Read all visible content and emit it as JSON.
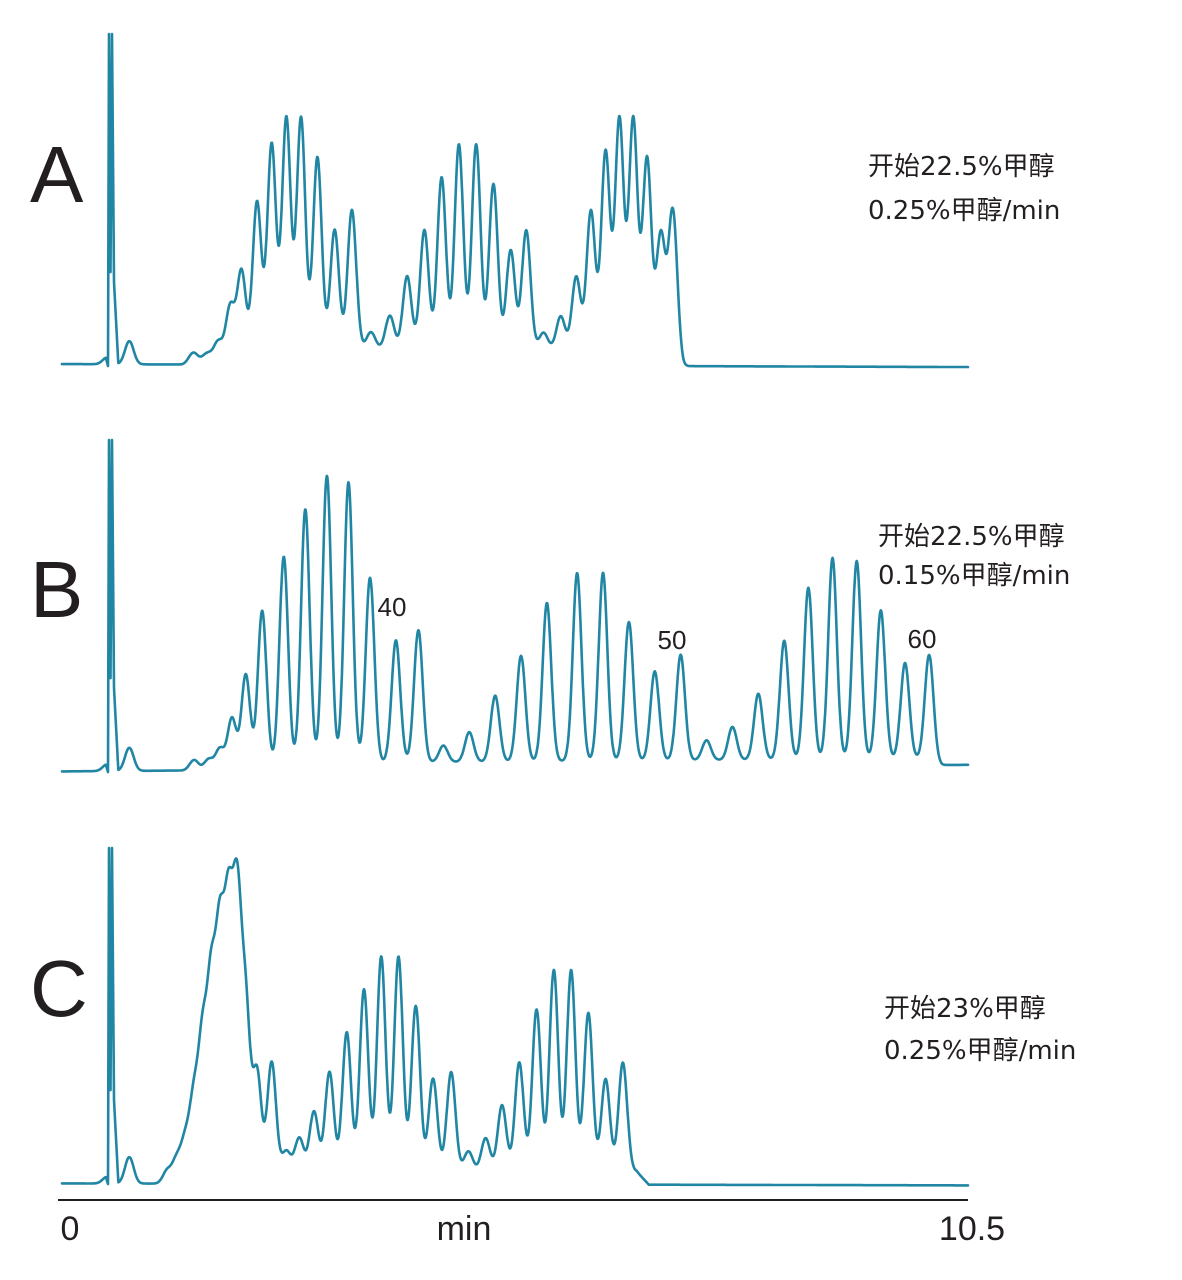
{
  "chart_data": {
    "type": "line",
    "line_color": "#2186a3",
    "text_color": "#231f20",
    "x_axis": {
      "label": "min",
      "range": [
        0,
        10.5
      ],
      "tick_labels": [
        "0",
        "10.5"
      ]
    },
    "panels": [
      {
        "letter": "A",
        "conditions": [
          "开始22.5%甲醇",
          "0.25%甲醇/min"
        ],
        "peak_labels": [],
        "baseline_start": 0.024,
        "baseline_end": 0.015,
        "plateau": {
          "start": 1.4,
          "end": 7.2,
          "level": 0.05
        },
        "void_peak_time": 0.58,
        "peaks": [
          {
            "t": 0.52,
            "h": 0.02
          },
          {
            "t": 0.78,
            "h": 0.07
          },
          {
            "t": 1.52,
            "h": 0.03
          },
          {
            "t": 1.68,
            "h": 0.02
          },
          {
            "t": 1.81,
            "h": 0.05
          },
          {
            "t": 1.95,
            "h": 0.15
          },
          {
            "t": 2.08,
            "h": 0.25
          },
          {
            "t": 2.26,
            "h": 0.45
          },
          {
            "t": 2.43,
            "h": 0.62
          },
          {
            "t": 2.6,
            "h": 0.7
          },
          {
            "t": 2.77,
            "h": 0.7
          },
          {
            "t": 2.96,
            "h": 0.58
          },
          {
            "t": 3.16,
            "h": 0.36
          },
          {
            "t": 3.36,
            "h": 0.42
          },
          {
            "t": 3.58,
            "h": 0.05
          },
          {
            "t": 3.8,
            "h": 0.1
          },
          {
            "t": 4.0,
            "h": 0.22
          },
          {
            "t": 4.2,
            "h": 0.36
          },
          {
            "t": 4.4,
            "h": 0.52
          },
          {
            "t": 4.6,
            "h": 0.62
          },
          {
            "t": 4.8,
            "h": 0.62
          },
          {
            "t": 5.0,
            "h": 0.5
          },
          {
            "t": 5.2,
            "h": 0.3
          },
          {
            "t": 5.38,
            "h": 0.36
          },
          {
            "t": 5.58,
            "h": 0.05
          },
          {
            "t": 5.78,
            "h": 0.1
          },
          {
            "t": 5.96,
            "h": 0.22
          },
          {
            "t": 6.13,
            "h": 0.42
          },
          {
            "t": 6.3,
            "h": 0.6
          },
          {
            "t": 6.46,
            "h": 0.7
          },
          {
            "t": 6.62,
            "h": 0.7
          },
          {
            "t": 6.78,
            "h": 0.58
          },
          {
            "t": 6.94,
            "h": 0.35
          },
          {
            "t": 7.08,
            "h": 0.43
          }
        ]
      },
      {
        "letter": "B",
        "conditions": [
          "开始22.5%甲醇",
          "0.15%甲醇/min"
        ],
        "peak_labels": [
          {
            "text": "40",
            "t": 3.82
          },
          {
            "text": "50",
            "t": 7.05
          },
          {
            "text": "60",
            "t": 10.0
          }
        ],
        "baseline_start": 0.02,
        "baseline_end": 0.04,
        "plateau": {
          "start": 1.4,
          "end": 10.2,
          "level": 0.02
        },
        "void_peak_time": 0.58,
        "peaks": [
          {
            "t": 0.52,
            "h": 0.02
          },
          {
            "t": 0.78,
            "h": 0.07
          },
          {
            "t": 1.53,
            "h": 0.03
          },
          {
            "t": 1.7,
            "h": 0.03
          },
          {
            "t": 1.83,
            "h": 0.06
          },
          {
            "t": 1.97,
            "h": 0.15
          },
          {
            "t": 2.13,
            "h": 0.28
          },
          {
            "t": 2.32,
            "h": 0.47
          },
          {
            "t": 2.57,
            "h": 0.63
          },
          {
            "t": 2.82,
            "h": 0.77
          },
          {
            "t": 3.07,
            "h": 0.87
          },
          {
            "t": 3.32,
            "h": 0.85
          },
          {
            "t": 3.57,
            "h": 0.56
          },
          {
            "t": 3.87,
            "h": 0.37
          },
          {
            "t": 4.13,
            "h": 0.4
          },
          {
            "t": 4.42,
            "h": 0.05
          },
          {
            "t": 4.72,
            "h": 0.09
          },
          {
            "t": 5.02,
            "h": 0.2
          },
          {
            "t": 5.32,
            "h": 0.32
          },
          {
            "t": 5.62,
            "h": 0.48
          },
          {
            "t": 5.97,
            "h": 0.57
          },
          {
            "t": 6.27,
            "h": 0.57
          },
          {
            "t": 6.57,
            "h": 0.42
          },
          {
            "t": 6.87,
            "h": 0.27
          },
          {
            "t": 7.17,
            "h": 0.32
          },
          {
            "t": 7.47,
            "h": 0.06
          },
          {
            "t": 7.77,
            "h": 0.1
          },
          {
            "t": 8.07,
            "h": 0.2
          },
          {
            "t": 8.37,
            "h": 0.36
          },
          {
            "t": 8.65,
            "h": 0.52
          },
          {
            "t": 8.93,
            "h": 0.61
          },
          {
            "t": 9.21,
            "h": 0.6
          },
          {
            "t": 9.49,
            "h": 0.45
          },
          {
            "t": 9.77,
            "h": 0.29
          },
          {
            "t": 10.05,
            "h": 0.32
          }
        ]
      },
      {
        "letter": "C",
        "conditions": [
          "开始23%甲醇",
          "0.25%甲醇/min"
        ],
        "peak_labels": [],
        "baseline_start": 0.02,
        "baseline_end": 0.014,
        "plateau": {
          "start": 1.25,
          "end": 6.8,
          "level": 0.04
        },
        "void_peak_time": 0.58,
        "peaks": [
          {
            "t": 0.52,
            "h": 0.02
          },
          {
            "t": 0.78,
            "h": 0.08
          },
          {
            "t": 1.22,
            "h": 0.04
          },
          {
            "t": 1.33,
            "h": 0.07
          },
          {
            "t": 1.43,
            "h": 0.12
          },
          {
            "t": 1.53,
            "h": 0.24
          },
          {
            "t": 1.63,
            "h": 0.4
          },
          {
            "t": 1.73,
            "h": 0.55
          },
          {
            "t": 1.83,
            "h": 0.67
          },
          {
            "t": 1.93,
            "h": 0.73
          },
          {
            "t": 2.03,
            "h": 0.78
          },
          {
            "t": 2.13,
            "h": 0.48
          },
          {
            "t": 2.26,
            "h": 0.3
          },
          {
            "t": 2.43,
            "h": 0.33
          },
          {
            "t": 2.6,
            "h": 0.06
          },
          {
            "t": 2.75,
            "h": 0.1
          },
          {
            "t": 2.92,
            "h": 0.18
          },
          {
            "t": 3.1,
            "h": 0.3
          },
          {
            "t": 3.3,
            "h": 0.42
          },
          {
            "t": 3.5,
            "h": 0.55
          },
          {
            "t": 3.7,
            "h": 0.65
          },
          {
            "t": 3.9,
            "h": 0.65
          },
          {
            "t": 4.1,
            "h": 0.5
          },
          {
            "t": 4.3,
            "h": 0.28
          },
          {
            "t": 4.51,
            "h": 0.3
          },
          {
            "t": 4.71,
            "h": 0.06
          },
          {
            "t": 4.91,
            "h": 0.1
          },
          {
            "t": 5.1,
            "h": 0.2
          },
          {
            "t": 5.3,
            "h": 0.33
          },
          {
            "t": 5.5,
            "h": 0.49
          },
          {
            "t": 5.7,
            "h": 0.61
          },
          {
            "t": 5.9,
            "h": 0.61
          },
          {
            "t": 6.1,
            "h": 0.48
          },
          {
            "t": 6.3,
            "h": 0.28
          },
          {
            "t": 6.5,
            "h": 0.33
          }
        ]
      }
    ]
  }
}
